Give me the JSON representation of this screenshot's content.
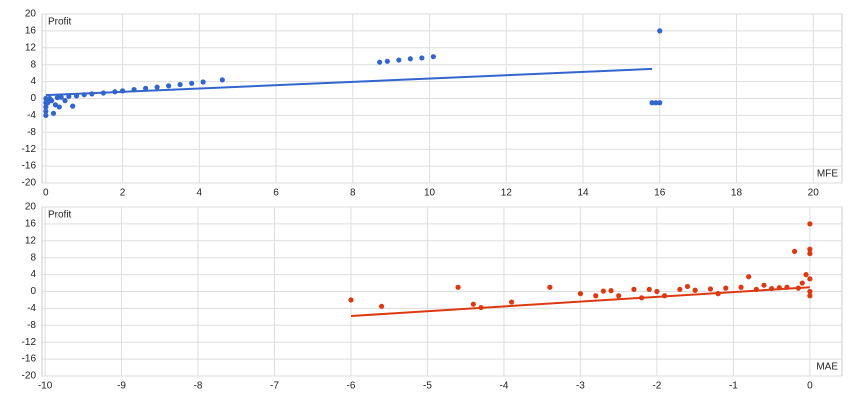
{
  "chart_data": [
    {
      "type": "scatter",
      "y_label": "Profit",
      "x_label": "MFE",
      "color": "#3366cc",
      "grid": true,
      "xlim": [
        -0.1,
        20.75
      ],
      "ylim": [
        -20,
        20
      ],
      "xticks": [
        0,
        2,
        4,
        6,
        8,
        10,
        12,
        14,
        16,
        18,
        20
      ],
      "yticks": [
        20,
        16,
        12,
        8,
        4,
        0,
        -4,
        -8,
        -12,
        -16,
        -20
      ],
      "x": [
        0,
        0,
        0,
        0,
        0,
        0.05,
        0.1,
        0.15,
        0.2,
        0.3,
        0.4,
        0.5,
        0.6,
        0.8,
        1,
        1.2,
        1.5,
        1.8,
        2,
        2.3,
        2.6,
        2.9,
        3.2,
        3.5,
        3.8,
        4.1,
        4.6,
        8.7,
        8.9,
        9.2,
        9.5,
        9.8,
        10.1,
        15.8,
        15.9,
        16,
        16,
        0.35,
        0.25,
        0.7
      ],
      "values": [
        -4,
        -3,
        -2,
        -1,
        0,
        -1,
        0,
        -0.5,
        -3.5,
        0.2,
        0.3,
        -0.5,
        0.5,
        0.6,
        0.9,
        1.1,
        1.3,
        1.6,
        1.8,
        2.1,
        2.4,
        2.7,
        3,
        3.3,
        3.6,
        3.9,
        4.4,
        8.6,
        8.8,
        9.1,
        9.4,
        9.6,
        9.9,
        -1,
        -1,
        -1,
        16,
        -2,
        -1.5,
        -1.8
      ],
      "trend": {
        "x": [
          0,
          15.8
        ],
        "values": [
          0.8,
          7
        ]
      }
    },
    {
      "type": "scatter",
      "y_label": "Profit",
      "x_label": "MAE",
      "color": "#dc3912",
      "grid": true,
      "xlim": [
        -10.04,
        0.42
      ],
      "ylim": [
        -20,
        20
      ],
      "xticks": [
        -10,
        -9,
        -8,
        -7,
        -6,
        -5,
        -4,
        -3,
        -2,
        -1,
        0
      ],
      "yticks": [
        20,
        16,
        12,
        8,
        4,
        0,
        -4,
        -8,
        -12,
        -16,
        -20
      ],
      "x": [
        -6,
        -5.6,
        -4.6,
        -4.4,
        -4.3,
        -3.9,
        -3.4,
        -3,
        -2.8,
        -2.6,
        -2.5,
        -2.3,
        -2.1,
        -2,
        -1.9,
        -1.7,
        -1.5,
        -1.3,
        -1.1,
        -0.9,
        -0.8,
        -0.7,
        -0.5,
        -0.3,
        -0.2,
        -0.1,
        -0.05,
        0,
        0,
        0,
        0,
        0,
        0,
        -0.15,
        -0.4,
        -1.2,
        -2.2,
        -2.7,
        -1.6,
        -0.6
      ],
      "values": [
        -2,
        -3.5,
        1,
        -3,
        -3.8,
        -2.5,
        1,
        -0.5,
        -1,
        0.2,
        -1,
        0.5,
        0.5,
        0,
        -1,
        0.5,
        0.3,
        0.6,
        0.8,
        1,
        3.5,
        0.5,
        0.7,
        1,
        9.5,
        2,
        4,
        16,
        10,
        9,
        3,
        0,
        -1,
        0.8,
        0.9,
        -0.5,
        -1.5,
        0.1,
        1.2,
        1.5
      ],
      "trend": {
        "x": [
          -6,
          0
        ],
        "values": [
          -5.8,
          1
        ]
      }
    }
  ]
}
